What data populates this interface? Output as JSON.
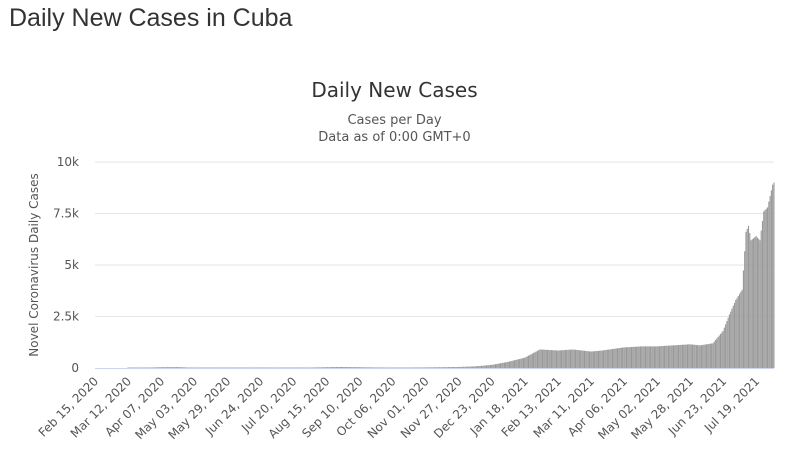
{
  "page": {
    "title": "Daily New Cases in Cuba"
  },
  "chart_data": {
    "type": "bar",
    "title": "Daily New Cases",
    "subtitle": [
      "Cases per Day",
      "Data as of 0:00 GMT+0"
    ],
    "ylabel": "Novel Coronavirus Daily Cases",
    "xlabel": "",
    "ylim": [
      0,
      10000
    ],
    "yticks": [
      {
        "value": 0,
        "label": "0"
      },
      {
        "value": 2500,
        "label": "2.5k"
      },
      {
        "value": 5000,
        "label": "5k"
      },
      {
        "value": 7500,
        "label": "7.5k"
      },
      {
        "value": 10000,
        "label": "10k"
      }
    ],
    "x_start": "2020-02-15",
    "x_end": "2021-08-02",
    "xtick_labels": [
      "Feb 15, 2020",
      "Mar 12, 2020",
      "Apr 07, 2020",
      "May 03, 2020",
      "May 29, 2020",
      "Jun 24, 2020",
      "Jul 20, 2020",
      "Aug 15, 2020",
      "Sep 10, 2020",
      "Oct 06, 2020",
      "Nov 01, 2020",
      "Nov 27, 2020",
      "Dec 23, 2020",
      "Jan 18, 2021",
      "Feb 13, 2021",
      "Mar 11, 2021",
      "Apr 06, 2021",
      "May 02, 2021",
      "May 28, 2021",
      "Jun 23, 2021",
      "Jul 19, 2021"
    ],
    "grid": true,
    "bar_color": "#999999",
    "zero_line_color": "#ccd6eb",
    "series": [
      {
        "points": [
          [
            "2020-02-15",
            0
          ],
          [
            "2020-03-11",
            0
          ],
          [
            "2020-03-20",
            5
          ],
          [
            "2020-04-07",
            40
          ],
          [
            "2020-04-20",
            45
          ],
          [
            "2020-05-03",
            15
          ],
          [
            "2020-05-29",
            5
          ],
          [
            "2020-06-24",
            3
          ],
          [
            "2020-07-20",
            5
          ],
          [
            "2020-08-15",
            40
          ],
          [
            "2020-08-25",
            50
          ],
          [
            "2020-09-10",
            40
          ],
          [
            "2020-09-20",
            30
          ],
          [
            "2020-10-06",
            20
          ],
          [
            "2020-11-01",
            30
          ],
          [
            "2020-11-15",
            40
          ],
          [
            "2020-11-27",
            50
          ],
          [
            "2020-12-10",
            80
          ],
          [
            "2020-12-23",
            150
          ],
          [
            "2021-01-05",
            300
          ],
          [
            "2021-01-18",
            500
          ],
          [
            "2021-01-30",
            900
          ],
          [
            "2021-02-13",
            850
          ],
          [
            "2021-02-25",
            900
          ],
          [
            "2021-03-11",
            800
          ],
          [
            "2021-03-20",
            850
          ],
          [
            "2021-04-06",
            1000
          ],
          [
            "2021-04-20",
            1050
          ],
          [
            "2021-05-02",
            1050
          ],
          [
            "2021-05-15",
            1100
          ],
          [
            "2021-05-28",
            1150
          ],
          [
            "2021-06-05",
            1100
          ],
          [
            "2021-06-15",
            1200
          ],
          [
            "2021-06-23",
            1800
          ],
          [
            "2021-06-28",
            2600
          ],
          [
            "2021-07-03",
            3300
          ],
          [
            "2021-07-08",
            3800
          ],
          [
            "2021-07-11",
            6600
          ],
          [
            "2021-07-13",
            6900
          ],
          [
            "2021-07-15",
            6200
          ],
          [
            "2021-07-19",
            6400
          ],
          [
            "2021-07-22",
            6200
          ],
          [
            "2021-07-25",
            7600
          ],
          [
            "2021-07-28",
            7800
          ],
          [
            "2021-08-01",
            8900
          ],
          [
            "2021-08-02",
            9000
          ]
        ]
      }
    ]
  }
}
